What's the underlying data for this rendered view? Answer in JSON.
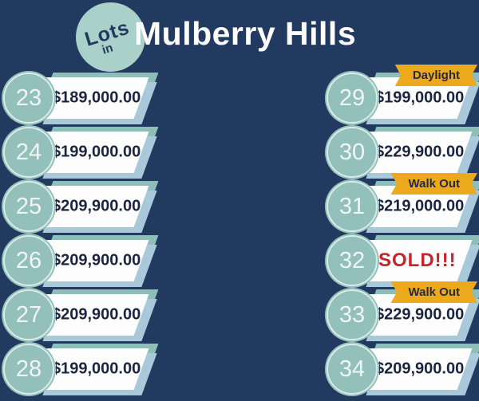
{
  "header": {
    "circle_line1": "Lots",
    "circle_line2": "in",
    "title": "Mulberry Hills"
  },
  "lots": [
    {
      "number": "23",
      "price": "$189,000.00"
    },
    {
      "number": "24",
      "price": "$199,000.00"
    },
    {
      "number": "25",
      "price": "$209,900.00"
    },
    {
      "number": "26",
      "price": "$209,900.00"
    },
    {
      "number": "27",
      "price": "$209,900.00"
    },
    {
      "number": "28",
      "price": "$199,000.00"
    },
    {
      "number": "29",
      "price": "$199,000.00",
      "badge": "Daylight"
    },
    {
      "number": "30",
      "price": "$229,900.00"
    },
    {
      "number": "31",
      "price": "$219,000.00",
      "badge": "Walk Out"
    },
    {
      "number": "32",
      "price": "SOLD!!!",
      "status": "sold"
    },
    {
      "number": "33",
      "price": "$229,900.00",
      "badge": "Walk Out"
    },
    {
      "number": "34",
      "price": "$209,900.00"
    }
  ],
  "colors": {
    "background": "#223a60",
    "banner_face": "#fdfdfe",
    "banner_accent_teal": "#8fbdb8",
    "banner_shadow_blue": "#a9c9da",
    "circle_fill": "#93c0ba",
    "circle_ring": "#d9eae7",
    "number_text": "#eff6f4",
    "price_text": "#1b2540",
    "badge_gold": "#eda91c",
    "badge_text": "#232a40",
    "sold_red": "#c6252c",
    "title_text": "#fcfcfc",
    "header_circle_fill": "#a9d0c9",
    "header_circle_text": "#21395c"
  }
}
